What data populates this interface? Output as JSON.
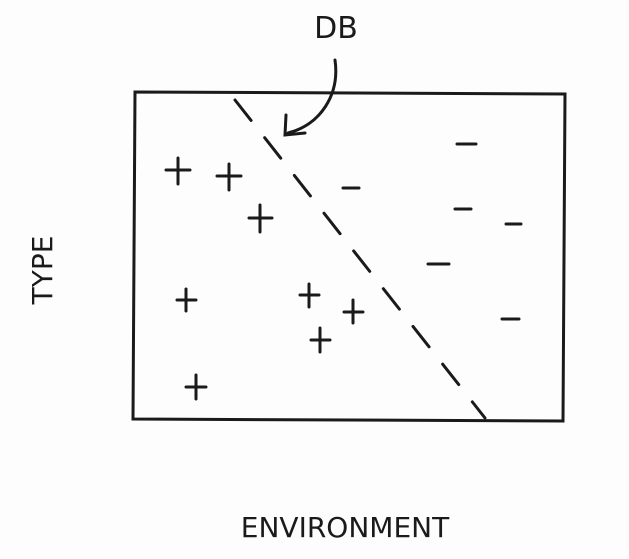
{
  "diagram": {
    "annotation": "DB",
    "y_axis_label": "TYPE",
    "x_axis_label": "ENVIRONMENT"
  }
}
